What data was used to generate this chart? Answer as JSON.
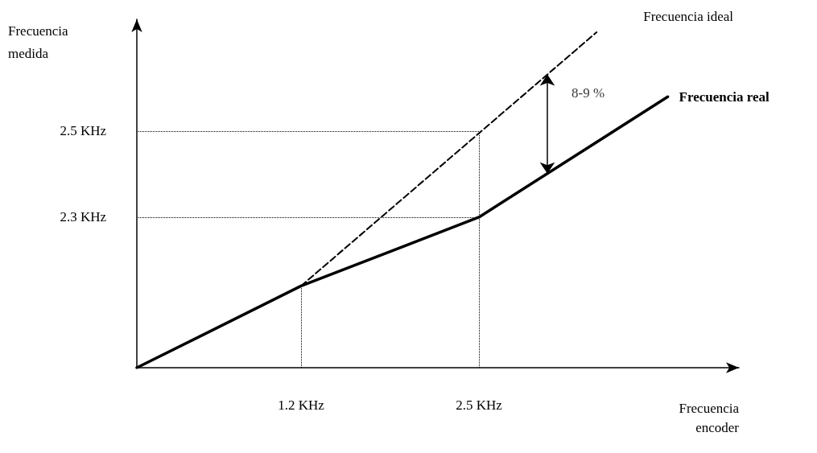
{
  "chart_data": {
    "type": "line",
    "xlabel": "Frecuencia encoder",
    "ylabel": "Frecuencia medida",
    "xlim": [
      0,
      4.4
    ],
    "ylim": [
      1.95,
      2.76
    ],
    "xticks": [
      {
        "value": 1.2,
        "label": "1.2 KHz"
      },
      {
        "value": 2.5,
        "label": "2.5 KHz"
      }
    ],
    "yticks": [
      {
        "value": 2.3,
        "label": "2.3 KHz"
      },
      {
        "value": 2.5,
        "label": "2.5 KHz"
      }
    ],
    "series": [
      {
        "name": "Frecuencia ideal",
        "color": "#000000",
        "x": [
          1.2,
          3.36
        ],
        "values": [
          2.14,
          2.73
        ],
        "line_style": "dashed"
      },
      {
        "name": "Frecuencia real",
        "color": "#000000",
        "x": [
          0,
          1.2,
          2.5,
          3.88
        ],
        "values": [
          1.95,
          2.14,
          2.3,
          2.58
        ],
        "line_style": "solid"
      }
    ],
    "ref_lines": [
      {
        "axis": "x",
        "value": 1.2,
        "line_style": "dotted"
      },
      {
        "axis": "x",
        "value": 2.5,
        "line_style": "dotted"
      },
      {
        "axis": "y",
        "value": 2.5,
        "line_style": "dotted"
      },
      {
        "axis": "y",
        "value": 2.3,
        "line_style": "dotted"
      }
    ],
    "annotations": [
      {
        "text": "8-9 %",
        "x": 3.0,
        "y": 2.63
      }
    ],
    "grid": false,
    "legend": false,
    "marker": "none"
  }
}
